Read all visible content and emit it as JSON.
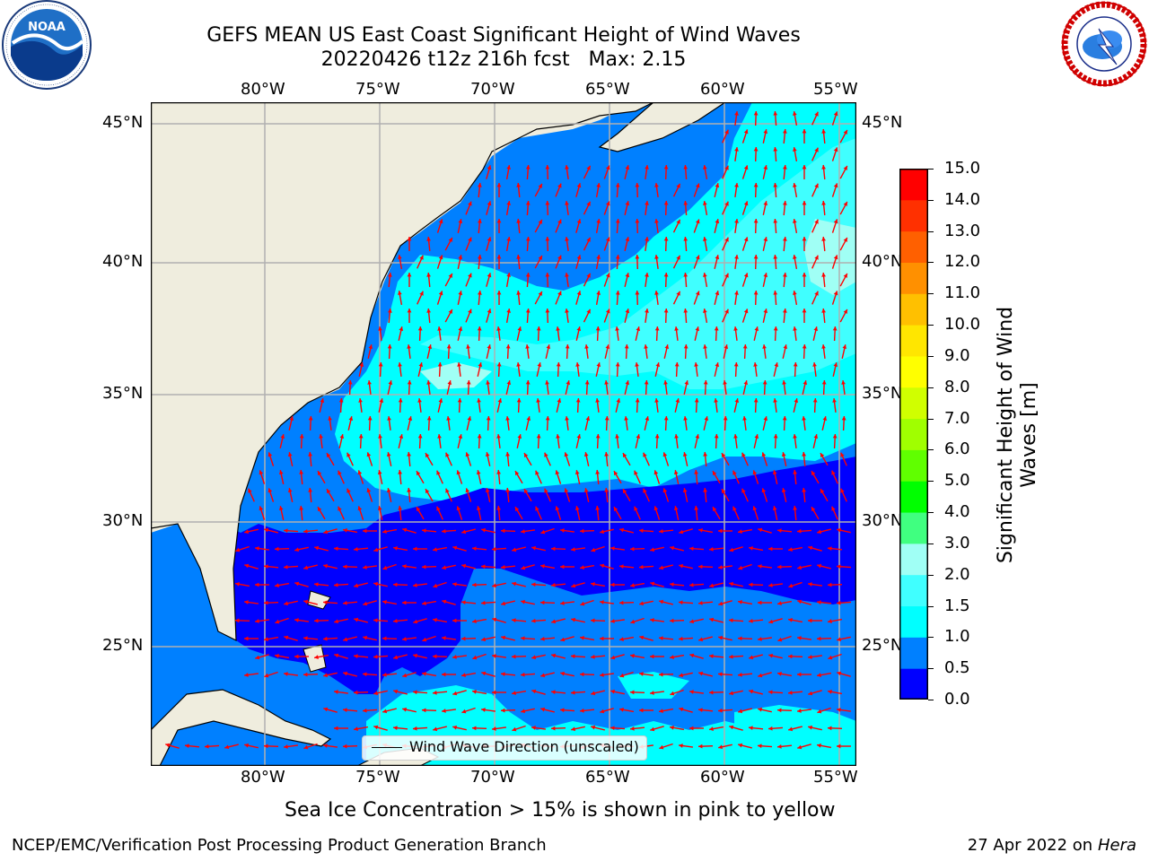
{
  "title": {
    "line1": "GEFS MEAN US East Coast Significant Height of Wind Waves",
    "line2": "20220426 t12z 216h fcst   Max: 2.15"
  },
  "logos": {
    "noaa": {
      "label": "NOAA",
      "ring_text": "NATIONAL OCEANIC AND ATMOSPHERIC ADMINISTRATION · U.S. DEPARTMENT OF COMMERCE"
    },
    "nws": {
      "ring_text": "NATIONAL WEATHER SERVICE"
    }
  },
  "map": {
    "lon_ticks": [
      "80°W",
      "75°W",
      "70°W",
      "65°W",
      "60°W",
      "55°W"
    ],
    "lat_ticks_left": [
      "45°N",
      "40°N",
      "35°N",
      "30°N",
      "25°N"
    ],
    "lat_ticks_right": [
      "45°N",
      "40°N",
      "35°N",
      "30°N",
      "25°N"
    ],
    "lon_range": [
      -85,
      -54.3
    ],
    "lat_range": [
      20.5,
      46.1
    ],
    "legend_label": "Wind Wave Direction (unscaled)",
    "colors": {
      "land": "#efedde",
      "ocean_0_0_5": "#0000ff",
      "ocean_0_5_1": "#0080ff",
      "ocean_1_1_5": "#00ffff",
      "ocean_1_5_2": "#40ffff",
      "ocean_2_3": "#a0fff5",
      "arrow": "#ff0000",
      "grid": "#b0b0b0",
      "coast": "#000000"
    }
  },
  "colorbar": {
    "label": "Significant Height of Wind Waves [m]",
    "label_line1": "Significant Height of Wind",
    "label_line2": "Waves [m]",
    "ticks": [
      "15.0",
      "14.0",
      "13.0",
      "12.0",
      "11.0",
      "10.0",
      "9.0",
      "8.0",
      "7.0",
      "6.0",
      "5.0",
      "4.0",
      "3.0",
      "2.0",
      "1.5",
      "1.0",
      "0.5",
      "0.0"
    ],
    "levels": [
      0,
      0.5,
      1.0,
      1.5,
      2.0,
      3.0,
      4.0,
      5.0,
      6.0,
      7.0,
      8.0,
      9.0,
      10.0,
      11.0,
      12.0,
      13.0,
      14.0,
      15.0
    ],
    "colors": [
      "#0000ff",
      "#0080ff",
      "#00ffff",
      "#40ffff",
      "#a0fff5",
      "#40ff80",
      "#00ff00",
      "#60ff00",
      "#a0ff00",
      "#d0ff00",
      "#ffff00",
      "#ffe600",
      "#ffc000",
      "#ff9000",
      "#ff6000",
      "#ff3000",
      "#ff0000"
    ]
  },
  "subtitle": "Sea Ice Concentration > 15% is shown in pink to yellow",
  "footer": {
    "left": "NCEP/EMC/Verification Post Processing Product Generation Branch",
    "right_date": "27 Apr 2022 on ",
    "right_machine": "Hera"
  }
}
